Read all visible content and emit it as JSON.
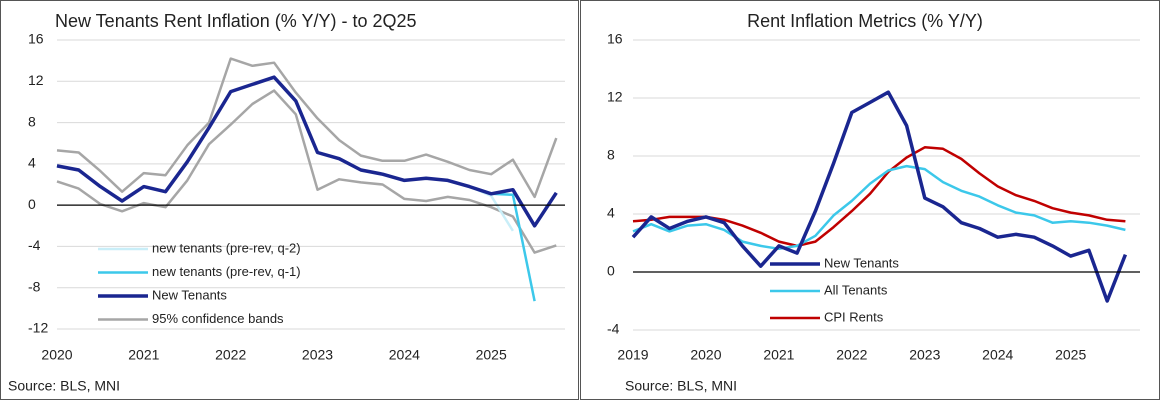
{
  "chart_data": [
    {
      "type": "line",
      "title": "New Tenants Rent Inflation (% Y/Y) - to 2Q25",
      "source": "Source: BLS, MNI",
      "x": [
        2020,
        2020.25,
        2020.5,
        2020.75,
        2021,
        2021.25,
        2021.5,
        2021.75,
        2022,
        2022.25,
        2022.5,
        2022.75,
        2023,
        2023.25,
        2023.5,
        2023.75,
        2024,
        2024.25,
        2024.5,
        2024.75,
        2025,
        2025.25,
        2025.5,
        2025.75
      ],
      "xlim": [
        2020,
        2025.85
      ],
      "xticks": [
        2020,
        2021,
        2022,
        2023,
        2024,
        2025
      ],
      "ylim": [
        -12,
        16
      ],
      "yticks": [
        -12,
        -8,
        -4,
        0,
        4,
        8,
        12,
        16
      ],
      "grid": true,
      "series": [
        {
          "name": "new tenants (pre-rev, q-2)",
          "color": "#c9eef8",
          "values": [
            3.8,
            3.4,
            1.8,
            0.4,
            1.8,
            1.3,
            4.2,
            7.5,
            11.0,
            11.7,
            12.4,
            10.1,
            5.1,
            4.5,
            3.4,
            3.0,
            2.4,
            2.6,
            2.4,
            1.8,
            0.9,
            -2.5,
            null,
            null
          ]
        },
        {
          "name": "new tenants (pre-rev, q-1)",
          "color": "#3cc8ea",
          "values": [
            3.8,
            3.4,
            1.8,
            0.4,
            1.8,
            1.3,
            4.2,
            7.5,
            11.0,
            11.7,
            12.4,
            10.1,
            5.1,
            4.5,
            3.4,
            3.0,
            2.4,
            2.6,
            2.4,
            1.8,
            1.1,
            1.0,
            -9.3,
            null
          ]
        },
        {
          "name": "New Tenants",
          "color": "#1a2690",
          "values": [
            3.8,
            3.4,
            1.8,
            0.4,
            1.8,
            1.3,
            4.2,
            7.5,
            11.0,
            11.7,
            12.4,
            10.1,
            5.1,
            4.5,
            3.4,
            3.0,
            2.4,
            2.6,
            2.4,
            1.8,
            1.1,
            1.5,
            -2.0,
            1.2
          ]
        },
        {
          "name": "95% confidence bands",
          "color": "#a6a6a6",
          "values": [
            5.3,
            5.1,
            3.3,
            1.3,
            3.1,
            2.9,
            5.8,
            8.0,
            14.2,
            13.5,
            13.8,
            10.9,
            8.4,
            6.3,
            4.8,
            4.3,
            4.3,
            4.9,
            4.2,
            3.4,
            3.0,
            4.4,
            0.8,
            6.5
          ],
          "lower": [
            2.3,
            1.6,
            0.1,
            -0.6,
            0.2,
            -0.2,
            2.4,
            5.9,
            7.8,
            9.8,
            11.1,
            8.8,
            1.5,
            2.5,
            2.2,
            2.0,
            0.6,
            0.4,
            0.8,
            0.5,
            -0.2,
            -1.1,
            -4.6,
            -3.9
          ]
        }
      ]
    },
    {
      "type": "line",
      "title": "Rent Inflation Metrics (% Y/Y)",
      "source": "Source: BLS, MNI",
      "x": [
        2019,
        2019.25,
        2019.5,
        2019.75,
        2020,
        2020.25,
        2020.5,
        2020.75,
        2021,
        2021.25,
        2021.5,
        2021.75,
        2022,
        2022.25,
        2022.5,
        2022.75,
        2023,
        2023.25,
        2023.5,
        2023.75,
        2024,
        2024.25,
        2024.5,
        2024.75,
        2025,
        2025.25,
        2025.5,
        2025.75
      ],
      "xlim": [
        2019,
        2025.95
      ],
      "xticks": [
        2019,
        2020,
        2021,
        2022,
        2023,
        2024,
        2025
      ],
      "ylim": [
        -4,
        16
      ],
      "yticks": [
        -4,
        0,
        4,
        8,
        12,
        16
      ],
      "grid": true,
      "series": [
        {
          "name": "New Tenants",
          "color": "#1a2690",
          "values": [
            2.4,
            3.8,
            3.0,
            3.5,
            3.8,
            3.4,
            1.8,
            0.4,
            1.8,
            1.3,
            4.2,
            7.5,
            11.0,
            11.7,
            12.4,
            10.1,
            5.1,
            4.5,
            3.4,
            3.0,
            2.4,
            2.6,
            2.4,
            1.8,
            1.1,
            1.5,
            -2.0,
            1.2
          ]
        },
        {
          "name": "All Tenants",
          "color": "#3cc8ea",
          "values": [
            2.8,
            3.3,
            2.8,
            3.2,
            3.3,
            2.9,
            2.1,
            1.8,
            1.6,
            1.8,
            2.5,
            3.9,
            4.9,
            6.1,
            7.0,
            7.3,
            7.1,
            6.2,
            5.6,
            5.2,
            4.6,
            4.1,
            3.9,
            3.4,
            3.5,
            3.4,
            3.2,
            2.9
          ]
        },
        {
          "name": "CPI Rents",
          "color": "#c00000",
          "values": [
            3.5,
            3.6,
            3.8,
            3.8,
            3.8,
            3.6,
            3.2,
            2.7,
            2.1,
            1.8,
            2.1,
            3.1,
            4.2,
            5.4,
            6.9,
            7.9,
            8.6,
            8.5,
            7.8,
            6.8,
            5.9,
            5.3,
            4.9,
            4.4,
            4.1,
            3.9,
            3.6,
            3.5
          ]
        }
      ]
    }
  ]
}
